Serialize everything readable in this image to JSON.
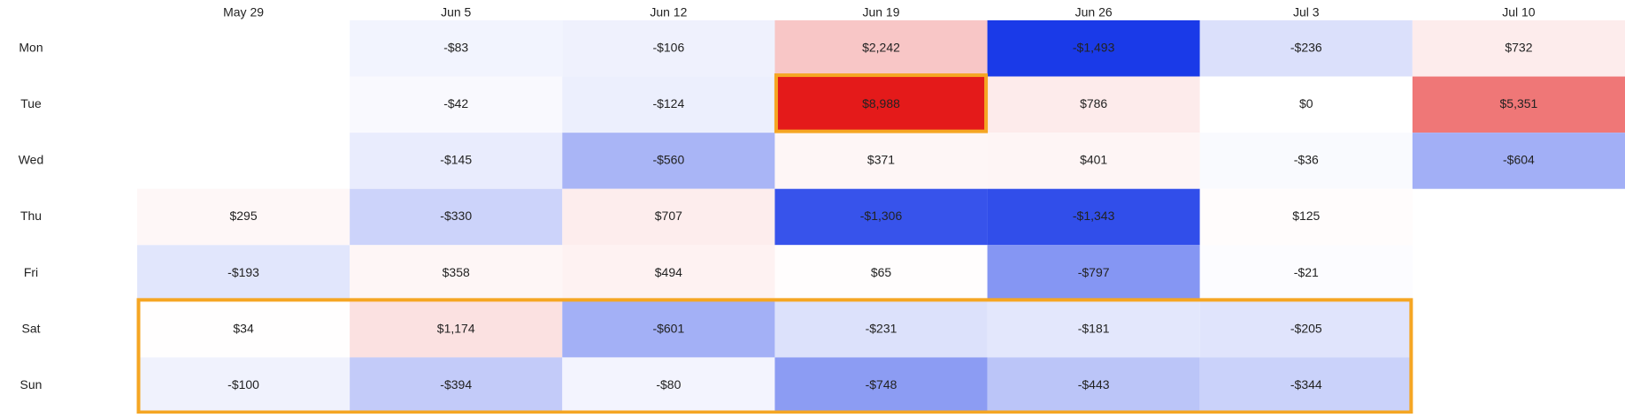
{
  "chart_data": {
    "type": "heatmap",
    "x": [
      "May 29",
      "Jun 5",
      "Jun 12",
      "Jun 19",
      "Jun 26",
      "Jul 3",
      "Jul 10"
    ],
    "y": [
      "Mon",
      "Tue",
      "Wed",
      "Thu",
      "Fri",
      "Sat",
      "Sun"
    ],
    "values": [
      [
        null,
        -83,
        -106,
        2242,
        -1493,
        -236,
        732
      ],
      [
        null,
        -42,
        -124,
        8988,
        786,
        0,
        5351
      ],
      [
        null,
        -145,
        -560,
        371,
        401,
        -36,
        -604
      ],
      [
        295,
        -330,
        707,
        -1306,
        -1343,
        125,
        null
      ],
      [
        -193,
        358,
        494,
        65,
        -797,
        -21,
        null
      ],
      [
        34,
        1174,
        -601,
        -231,
        -181,
        -205,
        null
      ],
      [
        -100,
        -394,
        -80,
        -748,
        -443,
        -344,
        null
      ]
    ],
    "value_labels": [
      [
        null,
        "-$83",
        "-$106",
        "$2,242",
        "-$1,493",
        "-$236",
        "$732"
      ],
      [
        null,
        "-$42",
        "-$124",
        "$8,988",
        "$786",
        "$0",
        "$5,351"
      ],
      [
        null,
        "-$145",
        "-$560",
        "$371",
        "$401",
        "-$36",
        "-$604"
      ],
      [
        "$295",
        "-$330",
        "$707",
        "-$1,306",
        "-$1,343",
        "$125",
        null
      ],
      [
        "-$193",
        "$358",
        "$494",
        "$65",
        "-$797",
        "-$21",
        null
      ],
      [
        "$34",
        "$1,174",
        "-$601",
        "-$231",
        "-$181",
        "-$205",
        null
      ],
      [
        "-$100",
        "-$394",
        "-$80",
        "-$748",
        "-$443",
        "-$344",
        null
      ]
    ],
    "negative_color": "#1a3ae8",
    "positive_color": "#e41a1a",
    "zero_color": "#ffffff",
    "highlight_color": "#f5a623"
  }
}
